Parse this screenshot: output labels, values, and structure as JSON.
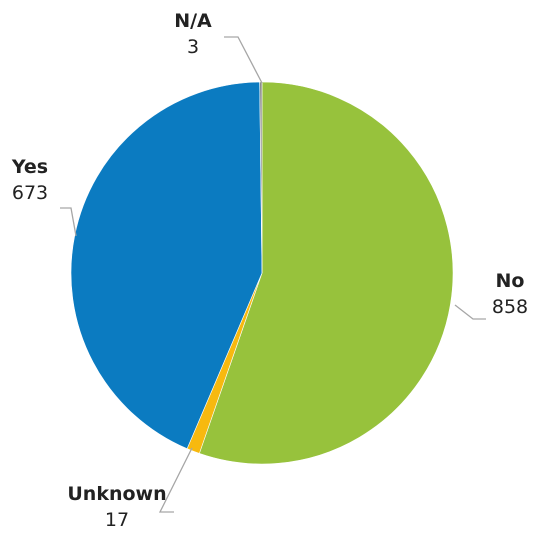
{
  "chart_data": {
    "type": "pie",
    "title": "",
    "start_angle_deg": 0,
    "direction": "clockwise",
    "legend": "none",
    "slices": [
      {
        "label": "No",
        "value": 858,
        "color": "#97c23c"
      },
      {
        "label": "Unknown",
        "value": 17,
        "color": "#f7b90f"
      },
      {
        "label": "Yes",
        "value": 673,
        "color": "#0b7bc1"
      },
      {
        "label": "N/A",
        "value": 3,
        "color": "#8c8c8c"
      }
    ]
  }
}
